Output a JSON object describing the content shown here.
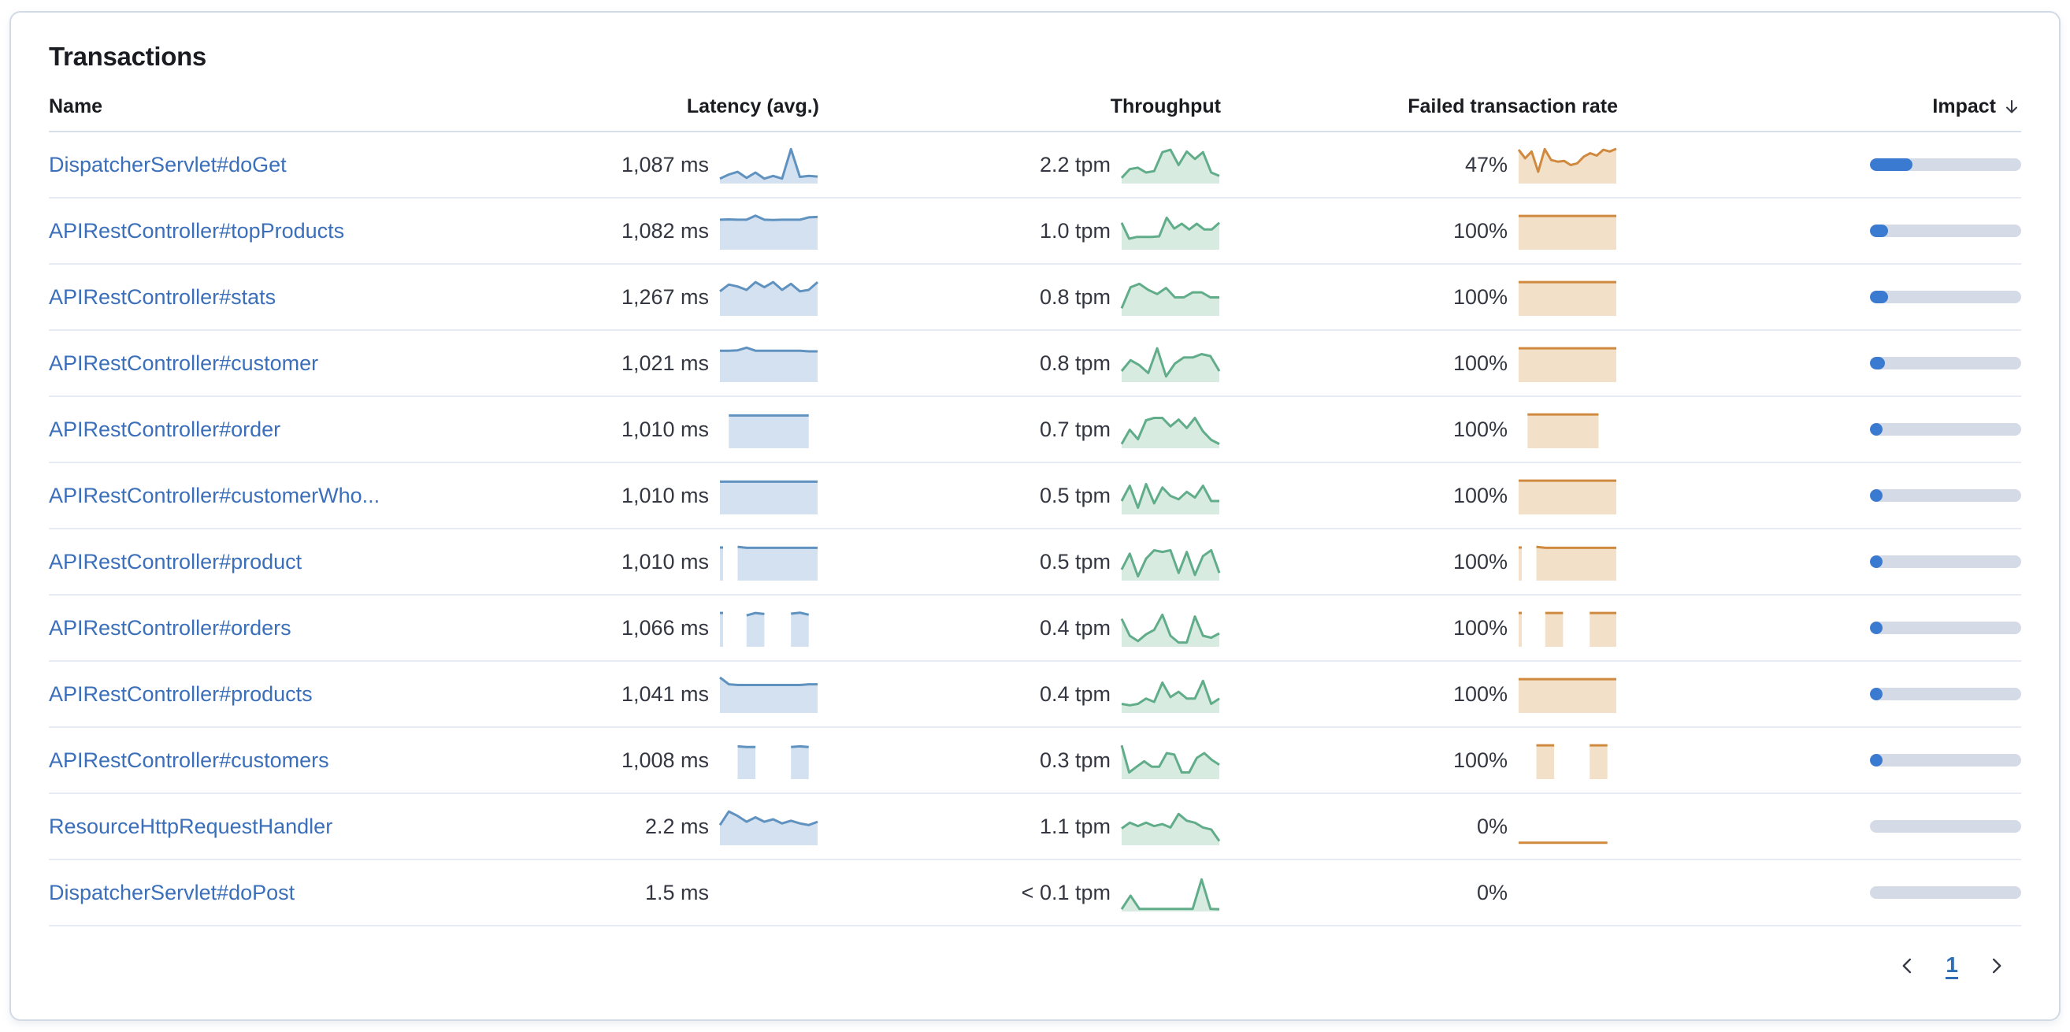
{
  "card": {
    "title": "Transactions"
  },
  "columns": {
    "name": "Name",
    "latency": "Latency (avg.)",
    "throughput": "Throughput",
    "failed": "Failed transaction rate",
    "impact": "Impact"
  },
  "sort": {
    "column": "impact",
    "direction": "desc",
    "icon": "arrow-down"
  },
  "colors": {
    "latency_stroke": "#6092c0",
    "latency_fill": "#d4e1f0",
    "throughput_stroke": "#61ad8a",
    "throughput_fill": "#d8ebe1",
    "failed_stroke": "#d08a3f",
    "failed_fill": "#f3e0c8",
    "impact_fill": "#3b7ad1",
    "impact_track": "#d5dbe6",
    "link": "#3b6fba"
  },
  "rows": [
    {
      "name": "DispatcherServlet#doGet",
      "latency": "1,087 ms",
      "latency_spark": {
        "values": [
          0.1,
          0.22,
          0.3,
          0.12,
          0.28,
          0.1,
          0.18,
          0.1,
          0.97,
          0.15,
          0.18,
          0.16
        ],
        "fill": true
      },
      "throughput": "2.2 tpm",
      "throughput_spark": {
        "values": [
          0.12,
          0.38,
          0.42,
          0.28,
          0.32,
          0.88,
          0.95,
          0.5,
          0.9,
          0.68,
          0.88,
          0.28,
          0.18
        ],
        "fill": true
      },
      "failed_rate": "47%",
      "failed_spark": {
        "values": [
          0.95,
          0.7,
          0.9,
          0.3,
          0.97,
          0.65,
          0.6,
          0.62,
          0.5,
          0.55,
          0.75,
          0.85,
          0.78,
          0.95,
          0.9,
          0.98
        ],
        "fill": true
      },
      "impact_pct": 28
    },
    {
      "name": "APIRestController#topProducts",
      "latency": "1,082 ms",
      "latency_spark": {
        "values": [
          0.84,
          0.85,
          0.84,
          0.84,
          0.96,
          0.84,
          0.83,
          0.84,
          0.84,
          0.84,
          0.91,
          0.92
        ],
        "fill": true
      },
      "throughput": "1.0 tpm",
      "throughput_spark": {
        "values": [
          0.75,
          0.28,
          0.33,
          0.33,
          0.33,
          0.35,
          0.9,
          0.58,
          0.72,
          0.55,
          0.72,
          0.55,
          0.55,
          0.75
        ],
        "fill": true
      },
      "failed_rate": "100%",
      "failed_spark": {
        "values": [
          0.95,
          0.95,
          0.95,
          0.95,
          0.95,
          0.95,
          0.95,
          0.95,
          0.95,
          0.95,
          0.95,
          0.95
        ],
        "fill": true
      },
      "impact_pct": 12
    },
    {
      "name": "APIRestController#stats",
      "latency": "1,267 ms",
      "latency_spark": {
        "values": [
          0.68,
          0.88,
          0.82,
          0.72,
          0.95,
          0.8,
          0.95,
          0.72,
          0.9,
          0.68,
          0.72,
          0.95
        ],
        "fill": true
      },
      "throughput": "0.8 tpm",
      "throughput_spark": {
        "values": [
          0.18,
          0.8,
          0.9,
          0.72,
          0.6,
          0.78,
          0.5,
          0.5,
          0.65,
          0.65,
          0.5,
          0.5
        ],
        "fill": true
      },
      "failed_rate": "100%",
      "failed_spark": {
        "values": [
          0.95,
          0.95,
          0.95,
          0.95,
          0.95,
          0.95,
          0.95,
          0.95,
          0.95,
          0.95,
          0.95,
          0.95
        ],
        "fill": true
      },
      "impact_pct": 12
    },
    {
      "name": "APIRestController#customer",
      "latency": "1,021 ms",
      "latency_spark": {
        "values": [
          0.88,
          0.88,
          0.89,
          0.97,
          0.88,
          0.88,
          0.88,
          0.88,
          0.88,
          0.88,
          0.86,
          0.86
        ],
        "fill": true
      },
      "throughput": "0.8 tpm",
      "throughput_spark": {
        "values": [
          0.28,
          0.6,
          0.45,
          0.22,
          0.95,
          0.12,
          0.5,
          0.68,
          0.68,
          0.78,
          0.72,
          0.28
        ],
        "fill": true
      },
      "failed_rate": "100%",
      "failed_spark": {
        "values": [
          0.95,
          0.95,
          0.95,
          0.95,
          0.95,
          0.95,
          0.95,
          0.95,
          0.95,
          0.95,
          0.95,
          0.95
        ],
        "fill": true
      },
      "impact_pct": 10
    },
    {
      "name": "APIRestController#order",
      "latency": "1,010 ms",
      "latency_spark": {
        "values": [
          null,
          0.92,
          0.92,
          0.92,
          0.92,
          0.92,
          0.92,
          0.92,
          0.92,
          0.92,
          0.92,
          null
        ],
        "fill": true
      },
      "throughput": "0.7 tpm",
      "throughput_spark": {
        "values": [
          0.08,
          0.5,
          0.22,
          0.78,
          0.85,
          0.85,
          0.6,
          0.8,
          0.55,
          0.85,
          0.45,
          0.2,
          0.08
        ],
        "fill": true
      },
      "failed_rate": "100%",
      "failed_spark": {
        "values": [
          null,
          0.95,
          0.95,
          0.95,
          0.95,
          0.95,
          0.95,
          0.95,
          0.95,
          0.95,
          null,
          null
        ],
        "fill": true
      },
      "impact_pct": 8.5
    },
    {
      "name": "APIRestController#customerWho...",
      "latency": "1,010 ms",
      "latency_spark": {
        "values": [
          0.92,
          0.92,
          0.92,
          0.92,
          0.92,
          0.92,
          0.92,
          0.92,
          0.92,
          0.92,
          0.92,
          0.92
        ],
        "fill": true
      },
      "throughput": "0.5 tpm",
      "throughput_spark": {
        "values": [
          0.35,
          0.8,
          0.15,
          0.85,
          0.28,
          0.75,
          0.5,
          0.4,
          0.62,
          0.45,
          0.8,
          0.35,
          0.35
        ],
        "fill": true
      },
      "failed_rate": "100%",
      "failed_spark": {
        "values": [
          0.95,
          0.95,
          0.95,
          0.95,
          0.95,
          0.95,
          0.95,
          0.95,
          0.95,
          0.95,
          0.95,
          0.95
        ],
        "fill": true
      },
      "impact_pct": 6.5
    },
    {
      "name": "APIRestController#product",
      "latency": "1,010 ms",
      "latency_spark": {
        "values": [
          0.93,
          null,
          0.95,
          0.92,
          0.92,
          0.92,
          0.92,
          0.92,
          0.92,
          0.92,
          0.92,
          0.92
        ],
        "fill": true
      },
      "throughput": "0.5 tpm",
      "throughput_spark": {
        "values": [
          0.28,
          0.75,
          0.08,
          0.6,
          0.85,
          0.8,
          0.85,
          0.18,
          0.8,
          0.12,
          0.68,
          0.85,
          0.18
        ],
        "fill": true
      },
      "failed_rate": "100%",
      "failed_spark": {
        "values": [
          0.93,
          null,
          0.95,
          0.92,
          0.92,
          0.92,
          0.92,
          0.92,
          0.92,
          0.92,
          0.92,
          0.92
        ],
        "fill": true
      },
      "impact_pct": 6
    },
    {
      "name": "APIRestController#orders",
      "latency": "1,066 ms",
      "latency_spark": {
        "values": [
          0.95,
          null,
          null,
          0.88,
          0.95,
          0.92,
          null,
          null,
          0.93,
          0.96,
          0.9,
          null
        ],
        "fill": true
      },
      "throughput": "0.4 tpm",
      "throughput_spark": {
        "values": [
          0.78,
          0.28,
          0.12,
          0.32,
          0.45,
          0.9,
          0.28,
          0.08,
          0.08,
          0.85,
          0.28,
          0.22,
          0.35
        ],
        "fill": true
      },
      "failed_rate": "100%",
      "failed_spark": {
        "values": [
          0.95,
          null,
          null,
          0.95,
          0.95,
          0.95,
          null,
          null,
          0.95,
          0.95,
          0.95,
          0.95
        ],
        "fill": true
      },
      "impact_pct": 5.5
    },
    {
      "name": "APIRestController#products",
      "latency": "1,041 ms",
      "latency_spark": {
        "values": [
          1.0,
          0.8,
          0.78,
          0.78,
          0.78,
          0.78,
          0.78,
          0.78,
          0.78,
          0.78,
          0.8,
          0.8
        ],
        "fill": true
      },
      "throughput": "0.4 tpm",
      "throughput_spark": {
        "values": [
          0.22,
          0.18,
          0.22,
          0.38,
          0.28,
          0.85,
          0.42,
          0.58,
          0.38,
          0.38,
          0.9,
          0.22,
          0.38
        ],
        "fill": true
      },
      "failed_rate": "100%",
      "failed_spark": {
        "values": [
          0.95,
          0.95,
          0.95,
          0.95,
          0.95,
          0.95,
          0.95,
          0.95,
          0.95,
          0.95,
          0.95,
          0.95
        ],
        "fill": true
      },
      "impact_pct": 5
    },
    {
      "name": "APIRestController#customers",
      "latency": "1,008 ms",
      "latency_spark": {
        "values": [
          null,
          null,
          0.92,
          0.9,
          0.9,
          null,
          null,
          null,
          0.9,
          0.92,
          0.9,
          null
        ],
        "fill": true
      },
      "throughput": "0.3 tpm",
      "throughput_spark": {
        "values": [
          0.95,
          0.15,
          0.32,
          0.48,
          0.32,
          0.32,
          0.72,
          0.68,
          0.15,
          0.15,
          0.58,
          0.72,
          0.52,
          0.38
        ],
        "fill": true
      },
      "failed_rate": "100%",
      "failed_spark": {
        "values": [
          null,
          null,
          0.95,
          0.95,
          0.95,
          null,
          null,
          null,
          0.95,
          0.95,
          0.95,
          null
        ],
        "fill": true
      },
      "impact_pct": 4.5
    },
    {
      "name": "ResourceHttpRequestHandler",
      "latency": "2.2 ms",
      "latency_spark": {
        "values": [
          0.55,
          0.95,
          0.82,
          0.65,
          0.78,
          0.65,
          0.72,
          0.6,
          0.68,
          0.6,
          0.55,
          0.65
        ],
        "fill": true
      },
      "throughput": "1.1 tpm",
      "throughput_spark": {
        "values": [
          0.45,
          0.62,
          0.52,
          0.62,
          0.52,
          0.58,
          0.48,
          0.88,
          0.68,
          0.62,
          0.48,
          0.42,
          0.08
        ],
        "fill": true
      },
      "failed_rate": "0%",
      "failed_spark": {
        "values": [
          0.03,
          0.03,
          0.03,
          0.03,
          0.03,
          0.03,
          0.03,
          0.03,
          0.03,
          0.03,
          0.03,
          null
        ],
        "fill": false
      },
      "impact_pct": 0
    },
    {
      "name": "DispatcherServlet#doPost",
      "latency": "1.5 ms",
      "latency_spark": null,
      "throughput": "< 0.1 tpm",
      "throughput_spark": {
        "values": [
          0.02,
          0.42,
          0.03,
          0.03,
          0.03,
          0.03,
          0.03,
          0.03,
          0.03,
          0.9,
          0.03,
          0.02
        ],
        "fill": true
      },
      "failed_rate": "0%",
      "failed_spark": null,
      "impact_pct": 0
    }
  ],
  "pagination": {
    "current_page": "1",
    "prev_icon": "chevron-left",
    "next_icon": "chevron-right"
  }
}
